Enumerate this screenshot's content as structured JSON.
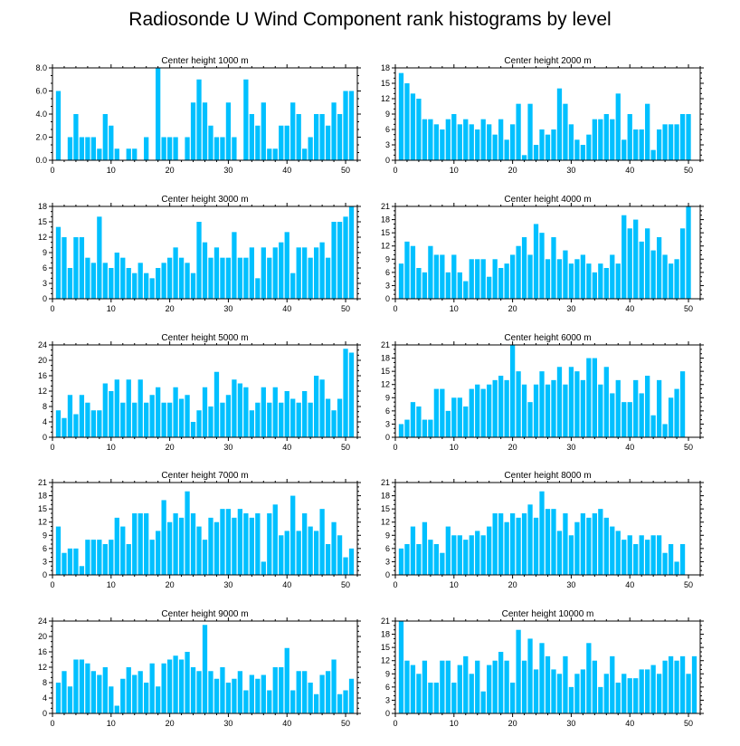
{
  "title": "Radiosonde U Wind Component rank histograms by level",
  "bar_color": "#00c0ff",
  "chart_data": [
    {
      "type": "bar",
      "title": "Center height 1000 m",
      "ylim": [
        0,
        8
      ],
      "yticks": [
        0,
        2,
        4,
        6,
        8
      ],
      "ytick_labels": [
        "0.0",
        "2.0",
        "4.0",
        "6.0",
        "8.0"
      ],
      "xlim": [
        0,
        52
      ],
      "xticks": [
        0,
        10,
        20,
        30,
        40,
        50
      ],
      "values": [
        6,
        0,
        2,
        4,
        2,
        2,
        2,
        1,
        4,
        3,
        1,
        0,
        1,
        1,
        0,
        2,
        0,
        8,
        2,
        2,
        2,
        0,
        2,
        5,
        7,
        5,
        3,
        2,
        2,
        5,
        2,
        0,
        7,
        4,
        3,
        5,
        1,
        1,
        3,
        3,
        5,
        4,
        1,
        2,
        4,
        4,
        3,
        5,
        4,
        6,
        6
      ]
    },
    {
      "type": "bar",
      "title": "Center height 2000 m",
      "ylim": [
        0,
        18
      ],
      "yticks": [
        0,
        3,
        6,
        9,
        12,
        15,
        18
      ],
      "ytick_labels": [
        "0",
        "3",
        "6",
        "9",
        "12",
        "15",
        "18"
      ],
      "xlim": [
        0,
        52
      ],
      "xticks": [
        0,
        10,
        20,
        30,
        40,
        50
      ],
      "values": [
        17,
        15,
        13,
        12,
        8,
        8,
        7,
        6,
        8,
        9,
        7,
        8,
        7,
        6,
        8,
        7,
        5,
        8,
        4,
        7,
        11,
        1,
        11,
        3,
        6,
        5,
        6,
        14,
        11,
        7,
        4,
        3,
        5,
        8,
        8,
        9,
        8,
        13,
        4,
        9,
        6,
        6,
        11,
        2,
        6,
        7,
        7,
        7,
        9,
        9
      ]
    },
    {
      "type": "bar",
      "title": "Center height 3000 m",
      "ylim": [
        0,
        18
      ],
      "yticks": [
        0,
        3,
        6,
        9,
        12,
        15,
        18
      ],
      "ytick_labels": [
        "0",
        "3",
        "6",
        "9",
        "12",
        "15",
        "18"
      ],
      "xlim": [
        0,
        52
      ],
      "xticks": [
        0,
        10,
        20,
        30,
        40,
        50
      ],
      "values": [
        14,
        12,
        6,
        12,
        12,
        8,
        7,
        16,
        7,
        6,
        9,
        8,
        6,
        5,
        7,
        5,
        4,
        6,
        7,
        8,
        10,
        8,
        7,
        5,
        15,
        11,
        8,
        10,
        8,
        8,
        13,
        8,
        8,
        10,
        4,
        10,
        8,
        10,
        11,
        13,
        5,
        10,
        10,
        8,
        10,
        11,
        8,
        15,
        15,
        16,
        18
      ]
    },
    {
      "type": "bar",
      "title": "Center height 4000 m",
      "ylim": [
        0,
        21
      ],
      "yticks": [
        0,
        3,
        6,
        9,
        12,
        15,
        18,
        21
      ],
      "ytick_labels": [
        "0",
        "3",
        "6",
        "9",
        "12",
        "15",
        "18",
        "21"
      ],
      "xlim": [
        0,
        52
      ],
      "xticks": [
        0,
        10,
        20,
        30,
        40,
        50
      ],
      "values": [
        8,
        13,
        12,
        7,
        6,
        12,
        10,
        10,
        6,
        10,
        6,
        4,
        9,
        9,
        9,
        5,
        9,
        7,
        8,
        10,
        12,
        14,
        10,
        17,
        15,
        9,
        14,
        9,
        11,
        8,
        9,
        10,
        8,
        6,
        8,
        7,
        10,
        8,
        19,
        16,
        18,
        13,
        16,
        11,
        14,
        10,
        8,
        9,
        16,
        21
      ]
    },
    {
      "type": "bar",
      "title": "Center height 5000 m",
      "ylim": [
        0,
        24
      ],
      "yticks": [
        0,
        4,
        8,
        12,
        16,
        20,
        24
      ],
      "ytick_labels": [
        "0",
        "4",
        "8",
        "12",
        "16",
        "20",
        "24"
      ],
      "xlim": [
        0,
        52
      ],
      "xticks": [
        0,
        10,
        20,
        30,
        40,
        50
      ],
      "values": [
        7,
        5,
        11,
        6,
        11,
        9,
        7,
        7,
        14,
        12,
        15,
        9,
        15,
        9,
        15,
        9,
        11,
        13,
        9,
        9,
        13,
        10,
        11,
        4,
        7,
        13,
        8,
        17,
        9,
        11,
        15,
        14,
        13,
        7,
        9,
        13,
        9,
        13,
        9,
        12,
        10,
        9,
        12,
        9,
        16,
        15,
        10,
        7,
        10,
        23,
        22
      ]
    },
    {
      "type": "bar",
      "title": "Center height 6000 m",
      "ylim": [
        0,
        21
      ],
      "yticks": [
        0,
        3,
        6,
        9,
        12,
        15,
        18,
        21
      ],
      "ytick_labels": [
        "0",
        "3",
        "6",
        "9",
        "12",
        "15",
        "18",
        "21"
      ],
      "xlim": [
        0,
        52
      ],
      "xticks": [
        0,
        10,
        20,
        30,
        40,
        50
      ],
      "values": [
        3,
        4,
        8,
        7,
        4,
        4,
        11,
        11,
        6,
        9,
        9,
        7,
        11,
        12,
        11,
        12,
        13,
        14,
        13,
        21,
        15,
        12,
        8,
        12,
        15,
        12,
        13,
        16,
        12,
        16,
        15,
        13,
        18,
        18,
        12,
        16,
        10,
        13,
        8,
        8,
        13,
        10,
        14,
        5,
        13,
        3,
        9,
        11,
        15
      ]
    },
    {
      "type": "bar",
      "title": "Center height 7000 m",
      "ylim": [
        0,
        21
      ],
      "yticks": [
        0,
        3,
        6,
        9,
        12,
        15,
        18,
        21
      ],
      "ytick_labels": [
        "0",
        "3",
        "6",
        "9",
        "12",
        "15",
        "18",
        "21"
      ],
      "xlim": [
        0,
        52
      ],
      "xticks": [
        0,
        10,
        20,
        30,
        40,
        50
      ],
      "values": [
        11,
        5,
        6,
        6,
        2,
        8,
        8,
        8,
        7,
        8,
        13,
        11,
        7,
        14,
        14,
        14,
        8,
        10,
        17,
        12,
        14,
        13,
        19,
        14,
        11,
        8,
        13,
        12,
        15,
        15,
        13,
        15,
        14,
        13,
        14,
        3,
        14,
        16,
        9,
        10,
        18,
        10,
        14,
        11,
        10,
        15,
        7,
        12,
        9,
        4,
        6
      ]
    },
    {
      "type": "bar",
      "title": "Center height 8000 m",
      "ylim": [
        0,
        21
      ],
      "yticks": [
        0,
        3,
        6,
        9,
        12,
        15,
        18,
        21
      ],
      "ytick_labels": [
        "0",
        "3",
        "6",
        "9",
        "12",
        "15",
        "18",
        "21"
      ],
      "xlim": [
        0,
        52
      ],
      "xticks": [
        0,
        10,
        20,
        30,
        40,
        50
      ],
      "values": [
        6,
        7,
        11,
        7,
        12,
        8,
        7,
        5,
        11,
        9,
        9,
        8,
        9,
        10,
        9,
        11,
        14,
        14,
        12,
        14,
        13,
        14,
        16,
        13,
        19,
        15,
        15,
        10,
        14,
        9,
        12,
        14,
        13,
        14,
        15,
        13,
        11,
        10,
        8,
        9,
        7,
        9,
        8,
        9,
        9,
        5,
        7,
        3,
        7
      ]
    },
    {
      "type": "bar",
      "title": "Center height 9000 m",
      "ylim": [
        0,
        24
      ],
      "yticks": [
        0,
        4,
        8,
        12,
        16,
        20,
        24
      ],
      "ytick_labels": [
        "0",
        "4",
        "8",
        "12",
        "16",
        "20",
        "24"
      ],
      "xlim": [
        0,
        52
      ],
      "xticks": [
        0,
        10,
        20,
        30,
        40,
        50
      ],
      "values": [
        8,
        11,
        7,
        14,
        14,
        13,
        11,
        10,
        12,
        7,
        2,
        9,
        12,
        10,
        11,
        8,
        13,
        7,
        13,
        14,
        15,
        14,
        16,
        12,
        11,
        23,
        11,
        9,
        12,
        8,
        9,
        11,
        6,
        10,
        9,
        10,
        6,
        12,
        12,
        17,
        6,
        11,
        11,
        8,
        5,
        10,
        11,
        14,
        5,
        6,
        9
      ]
    },
    {
      "type": "bar",
      "title": "Center height 10000 m",
      "ylim": [
        0,
        21
      ],
      "yticks": [
        0,
        3,
        6,
        9,
        12,
        15,
        18,
        21
      ],
      "ytick_labels": [
        "0",
        "3",
        "6",
        "9",
        "12",
        "15",
        "18",
        "21"
      ],
      "xlim": [
        0,
        52
      ],
      "xticks": [
        0,
        10,
        20,
        30,
        40,
        50
      ],
      "values": [
        21,
        12,
        11,
        9,
        12,
        7,
        7,
        12,
        12,
        7,
        11,
        13,
        9,
        12,
        5,
        11,
        12,
        14,
        12,
        7,
        19,
        12,
        17,
        10,
        16,
        13,
        10,
        9,
        13,
        6,
        9,
        10,
        16,
        12,
        6,
        9,
        13,
        7,
        9,
        8,
        8,
        10,
        10,
        11,
        9,
        12,
        13,
        12,
        13,
        9,
        13
      ]
    }
  ]
}
